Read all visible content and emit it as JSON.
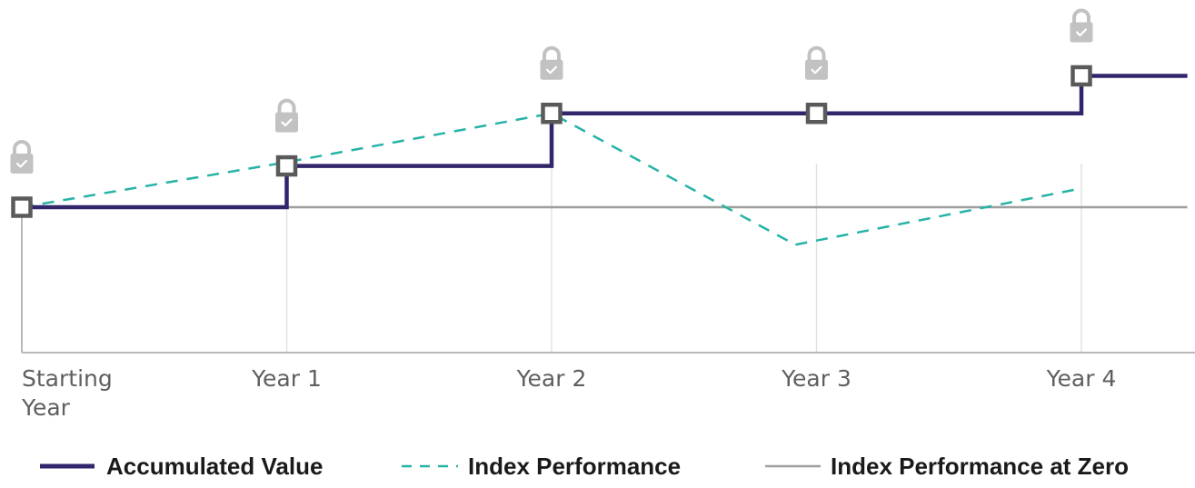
{
  "chart_data": {
    "type": "line",
    "title": "",
    "xlabel": "",
    "ylabel": "",
    "categories": [
      "Starting Year",
      "Year 1",
      "Year 2",
      "Year 3",
      "Year 4"
    ],
    "tick_lines": [
      [
        "Starting",
        "Year"
      ],
      [
        "Year 1"
      ],
      [
        "Year 2"
      ],
      [
        "Year 3"
      ],
      [
        "Year 4"
      ]
    ],
    "ylim": [
      -4,
      4.5
    ],
    "grid": "vertical",
    "legend_position": "bottom",
    "colors": {
      "accumulated": "#33256b",
      "index": "#26b3a6",
      "zero": "#9e9e9e",
      "grid": "#e2e2e2",
      "axis": "#b8b8b8",
      "marker": "#5a5a5a",
      "lock": "#c2c2c2"
    },
    "icons": [
      "lock-check-icon",
      "square-marker-icon"
    ],
    "series": [
      {
        "name": "Accumulated Value",
        "style": "step",
        "x": [
          0,
          1,
          2,
          3,
          4,
          4.4
        ],
        "values": [
          0,
          1.1,
          2.5,
          2.5,
          3.5,
          3.5
        ]
      },
      {
        "name": "Index Performance",
        "style": "dashed",
        "x": [
          0,
          1,
          2,
          2.92,
          4
        ],
        "values": [
          0,
          1.2,
          2.5,
          -1,
          0.5
        ]
      },
      {
        "name": "Index Performance at Zero",
        "style": "solid",
        "x": [
          0,
          4.4
        ],
        "values": [
          0,
          0
        ]
      }
    ],
    "locked_points": [
      {
        "x": 0,
        "y": 0
      },
      {
        "x": 1,
        "y": 1.1
      },
      {
        "x": 2,
        "y": 2.5
      },
      {
        "x": 3,
        "y": 2.5
      },
      {
        "x": 4,
        "y": 3.5
      }
    ]
  }
}
